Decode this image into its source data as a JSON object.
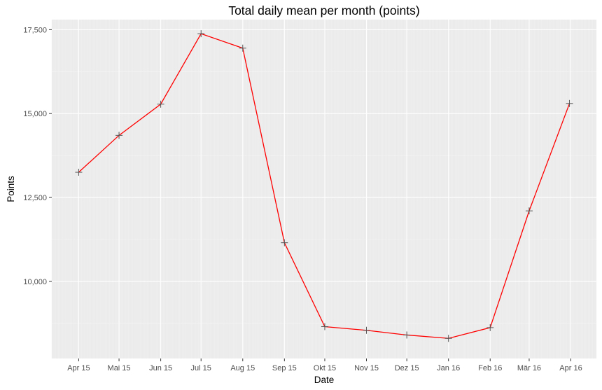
{
  "chart_data": {
    "type": "line",
    "title": "Total daily mean per month (points)",
    "xlabel": "Date",
    "ylabel": "Points",
    "x": [
      "2015-04-01",
      "2015-05-01",
      "2015-06-01",
      "2015-07-01",
      "2015-08-01",
      "2015-09-01",
      "2015-10-01",
      "2015-11-01",
      "2015-12-01",
      "2016-01-01",
      "2016-02-01",
      "2016-03-01",
      "2016-04-01"
    ],
    "x_tick_labels": [
      "Apr 15",
      "Mai 15",
      "Jun 15",
      "Jul 15",
      "Aug 15",
      "Sep 15",
      "Okt 15",
      "Nov 15",
      "Dez 15",
      "Jan 16",
      "Feb 16",
      "Mär 16",
      "Apr 16"
    ],
    "series": [
      {
        "x": [
          "2015-04-01",
          "2015-05-01",
          "2015-06-01",
          "2015-07-01",
          "2015-08-01",
          "2015-09-01",
          "2015-10-01",
          "2015-11-01",
          "2015-12-01",
          "2016-01-01",
          "2016-02-01",
          "2016-03-01",
          "2016-03-31"
        ],
        "values": [
          13250,
          14350,
          15280,
          17380,
          16950,
          11150,
          8650,
          8540,
          8400,
          8300,
          8620,
          12100,
          15300
        ]
      }
    ],
    "yticks": [
      10000,
      12500,
      15000,
      17500
    ],
    "ytick_labels": [
      "10,000",
      "12,500",
      "15,000",
      "17,500"
    ],
    "ylim": [
      7700,
      17800
    ],
    "xlim": [
      "2015-03-12",
      "2016-04-20"
    ],
    "grid": true,
    "line_color": "#ff0000",
    "marker_color": "#555555",
    "panel_color": "#ebebeb"
  }
}
